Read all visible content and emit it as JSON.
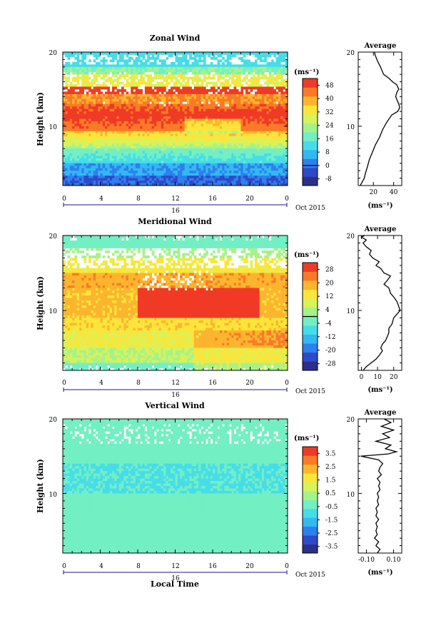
{
  "figure": {
    "xlabel": "Local Time",
    "month_label": "Oct 2015",
    "day_label": "16",
    "time_ticks": [
      "0",
      "4",
      "8",
      "12",
      "16",
      "20",
      "0"
    ],
    "height_ticks": [
      "10",
      "20"
    ],
    "average_title": "Average",
    "unit": "(ms⁻¹)",
    "height_label": "Height (km)"
  },
  "chart_data": [
    {
      "type": "heatmap",
      "title": "Zonal Wind",
      "xlabel": "",
      "ylabel": "Height (km)",
      "xlim": [
        0,
        24
      ],
      "ylim": [
        2,
        20
      ],
      "colorbar": {
        "label": "(ms⁻¹)",
        "ticks": [
          "48",
          "40",
          "32",
          "24",
          "16",
          "8",
          "0",
          "-8"
        ],
        "range": [
          -12,
          52
        ]
      },
      "profile": {
        "title": "Average",
        "xlabel": "(ms⁻¹)",
        "xticks": [
          "20",
          "40"
        ],
        "xlim": [
          5,
          48
        ],
        "points": [
          [
            7,
            2
          ],
          [
            9,
            2.5
          ],
          [
            11,
            3
          ],
          [
            12,
            3.6
          ],
          [
            14,
            4.5
          ],
          [
            16,
            5.5
          ],
          [
            19,
            6.5
          ],
          [
            22,
            7.5
          ],
          [
            26,
            8.5
          ],
          [
            29,
            9.5
          ],
          [
            33,
            10.5
          ],
          [
            38,
            11.5
          ],
          [
            44,
            12
          ],
          [
            46,
            12.5
          ],
          [
            45,
            13
          ],
          [
            42,
            14
          ],
          [
            43,
            14.5
          ],
          [
            45,
            15
          ],
          [
            43,
            15.6
          ],
          [
            39,
            16
          ],
          [
            35,
            16.5
          ],
          [
            30,
            17
          ],
          [
            27,
            18
          ],
          [
            24,
            18.8
          ],
          [
            22,
            19.5
          ],
          [
            21,
            20
          ]
        ]
      }
    },
    {
      "type": "heatmap",
      "title": "Meridional Wind",
      "xlabel": "",
      "ylabel": "Height (km)",
      "xlim": [
        0,
        24
      ],
      "ylim": [
        2,
        20
      ],
      "colorbar": {
        "label": "(ms⁻¹)",
        "ticks": [
          "28",
          "20",
          "12",
          "4",
          "-4",
          "-12",
          "-20",
          "-28"
        ],
        "range": [
          -32,
          32
        ]
      },
      "profile": {
        "title": "Average",
        "xlabel": "(ms⁻¹)",
        "xticks": [
          "0",
          "10",
          "20"
        ],
        "xlim": [
          -2,
          25
        ],
        "points": [
          [
            1,
            2
          ],
          [
            3,
            2.5
          ],
          [
            6,
            3
          ],
          [
            9,
            3.5
          ],
          [
            11,
            4
          ],
          [
            13,
            4.6
          ],
          [
            12,
            5
          ],
          [
            13,
            5.5
          ],
          [
            15,
            6
          ],
          [
            16,
            6.5
          ],
          [
            17,
            7
          ],
          [
            17,
            7.6
          ],
          [
            19,
            8.2
          ],
          [
            20,
            9
          ],
          [
            22,
            9.5
          ],
          [
            24,
            10
          ],
          [
            23,
            10.6
          ],
          [
            22,
            11.2
          ],
          [
            20,
            11.8
          ],
          [
            18,
            12.3
          ],
          [
            17,
            13
          ],
          [
            14,
            13.5
          ],
          [
            16,
            14
          ],
          [
            18,
            14.6
          ],
          [
            14,
            15
          ],
          [
            12,
            15.6
          ],
          [
            9,
            16
          ],
          [
            11,
            16.5
          ],
          [
            7,
            17
          ],
          [
            5,
            17.5
          ],
          [
            6,
            18
          ],
          [
            3,
            18.5
          ],
          [
            1,
            19
          ],
          [
            3,
            19.4
          ],
          [
            0,
            19.8
          ],
          [
            2,
            20
          ]
        ]
      }
    },
    {
      "type": "heatmap",
      "title": "Vertical Wind",
      "xlabel": "Local Time",
      "ylabel": "Height (km)",
      "xlim": [
        0,
        24
      ],
      "ylim": [
        2,
        20
      ],
      "colorbar": {
        "label": "(ms⁻¹)",
        "ticks": [
          "3.5",
          "2.5",
          "1.5",
          "0.5",
          "-0.5",
          "-1.5",
          "-2.5",
          "-3.5"
        ],
        "range": [
          -4,
          4
        ]
      },
      "profile": {
        "title": "Average",
        "xlabel": "(ms⁻¹)",
        "xticks": [
          "-0.10",
          "0.10"
        ],
        "xlim": [
          -0.16,
          0.16
        ],
        "points": [
          [
            -0.02,
            2
          ],
          [
            0.0,
            2.5
          ],
          [
            -0.03,
            3
          ],
          [
            -0.01,
            3.5
          ],
          [
            -0.04,
            4
          ],
          [
            -0.02,
            4.5
          ],
          [
            -0.03,
            5
          ],
          [
            -0.02,
            5.5
          ],
          [
            -0.03,
            6
          ],
          [
            -0.01,
            6.5
          ],
          [
            -0.03,
            7
          ],
          [
            -0.02,
            7.5
          ],
          [
            -0.03,
            8
          ],
          [
            -0.01,
            8.5
          ],
          [
            -0.02,
            9
          ],
          [
            -0.01,
            9.5
          ],
          [
            -0.02,
            10
          ],
          [
            0.0,
            10.5
          ],
          [
            -0.01,
            11
          ],
          [
            0.0,
            11.5
          ],
          [
            -0.02,
            12
          ],
          [
            0.01,
            12.5
          ],
          [
            -0.01,
            13
          ],
          [
            0.0,
            13.5
          ],
          [
            0.02,
            14
          ],
          [
            -0.01,
            14.5
          ],
          [
            -0.14,
            15
          ],
          [
            0.06,
            15.3
          ],
          [
            0.12,
            15.6
          ],
          [
            0.04,
            16
          ],
          [
            0.08,
            16.5
          ],
          [
            -0.03,
            17
          ],
          [
            0.07,
            17.5
          ],
          [
            0.02,
            18
          ],
          [
            0.1,
            18.5
          ],
          [
            0.01,
            19
          ],
          [
            0.08,
            19.5
          ],
          [
            0.03,
            20
          ]
        ]
      }
    }
  ],
  "colors": {
    "scale": [
      "#2b2f8a",
      "#2f49c9",
      "#2e7ff0",
      "#34b8f2",
      "#46dde8",
      "#73efc4",
      "#a6f28a",
      "#d8f25a",
      "#fbe53a",
      "#fdb52e",
      "#fb7a27",
      "#f03a25"
    ]
  }
}
